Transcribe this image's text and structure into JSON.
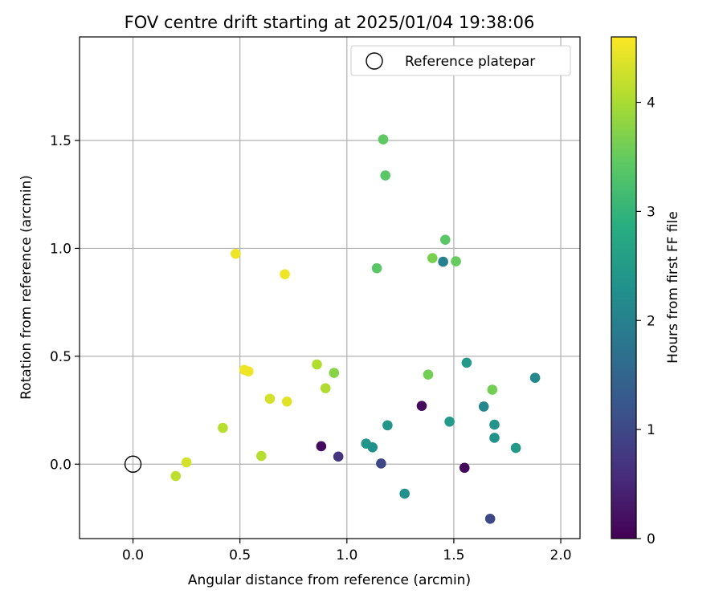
{
  "chart_data": {
    "type": "scatter",
    "title": "FOV centre drift starting at 2025/01/04 19:38:06",
    "xlabel": "Angular distance from reference (arcmin)",
    "ylabel": "Rotation from reference (arcmin)",
    "xlim": [
      -0.25,
      2.09
    ],
    "ylim": [
      -0.345,
      1.98
    ],
    "xticks": [
      "0.0",
      "0.5",
      "1.0",
      "1.5",
      "2.0"
    ],
    "yticks": [
      "0.0",
      "0.5",
      "1.0",
      "1.5"
    ],
    "grid": true,
    "legend": {
      "placement": "top-right",
      "entries": [
        "Reference platepar"
      ]
    },
    "reference_point": {
      "x": 0.0,
      "y": 0.0
    },
    "colorbar": {
      "label": "Hours from first FF file",
      "range": [
        0,
        4.6
      ],
      "ticks": [
        "0",
        "1",
        "2",
        "3",
        "4"
      ],
      "colormap": "viridis"
    },
    "points": [
      {
        "x": 0.2,
        "y": -0.055,
        "hours": 4.15
      },
      {
        "x": 0.25,
        "y": 0.008,
        "hours": 4.3
      },
      {
        "x": 0.42,
        "y": 0.168,
        "hours": 4.1
      },
      {
        "x": 0.48,
        "y": 0.975,
        "hours": 4.5
      },
      {
        "x": 0.52,
        "y": 0.437,
        "hours": 4.5
      },
      {
        "x": 0.54,
        "y": 0.43,
        "hours": 4.5
      },
      {
        "x": 0.6,
        "y": 0.038,
        "hours": 4.1
      },
      {
        "x": 0.64,
        "y": 0.303,
        "hours": 4.3
      },
      {
        "x": 0.71,
        "y": 0.88,
        "hours": 4.5
      },
      {
        "x": 0.72,
        "y": 0.29,
        "hours": 4.4
      },
      {
        "x": 0.86,
        "y": 0.462,
        "hours": 4.05
      },
      {
        "x": 0.9,
        "y": 0.352,
        "hours": 4.05
      },
      {
        "x": 0.94,
        "y": 0.423,
        "hours": 3.75
      },
      {
        "x": 0.88,
        "y": 0.083,
        "hours": 0.15
      },
      {
        "x": 0.96,
        "y": 0.035,
        "hours": 0.7
      },
      {
        "x": 1.09,
        "y": 0.095,
        "hours": 2.4
      },
      {
        "x": 1.12,
        "y": 0.078,
        "hours": 2.3
      },
      {
        "x": 1.14,
        "y": 0.908,
        "hours": 3.4
      },
      {
        "x": 1.16,
        "y": 0.003,
        "hours": 1.0
      },
      {
        "x": 1.17,
        "y": 1.505,
        "hours": 3.45
      },
      {
        "x": 1.18,
        "y": 1.338,
        "hours": 3.4
      },
      {
        "x": 1.19,
        "y": 0.18,
        "hours": 2.4
      },
      {
        "x": 1.27,
        "y": -0.137,
        "hours": 2.3
      },
      {
        "x": 1.35,
        "y": 0.27,
        "hours": 0.15
      },
      {
        "x": 1.38,
        "y": 0.415,
        "hours": 3.6
      },
      {
        "x": 1.4,
        "y": 0.955,
        "hours": 3.65
      },
      {
        "x": 1.45,
        "y": 0.938,
        "hours": 2.0
      },
      {
        "x": 1.46,
        "y": 1.04,
        "hours": 3.4
      },
      {
        "x": 1.48,
        "y": 0.197,
        "hours": 2.5
      },
      {
        "x": 1.51,
        "y": 0.94,
        "hours": 3.5
      },
      {
        "x": 1.55,
        "y": -0.017,
        "hours": 0.1
      },
      {
        "x": 1.56,
        "y": 0.47,
        "hours": 2.45
      },
      {
        "x": 1.64,
        "y": 0.267,
        "hours": 2.1
      },
      {
        "x": 1.67,
        "y": -0.253,
        "hours": 1.0
      },
      {
        "x": 1.68,
        "y": 0.345,
        "hours": 3.6
      },
      {
        "x": 1.69,
        "y": 0.183,
        "hours": 2.35
      },
      {
        "x": 1.69,
        "y": 0.122,
        "hours": 2.3
      },
      {
        "x": 1.79,
        "y": 0.075,
        "hours": 2.45
      },
      {
        "x": 1.88,
        "y": 0.4,
        "hours": 2.15
      }
    ]
  }
}
